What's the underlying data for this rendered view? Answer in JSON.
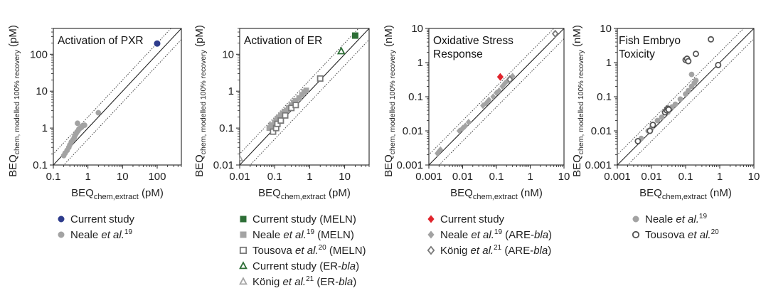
{
  "figure": {
    "y_label_main": "BEQ",
    "x_label_main": "BEQ"
  },
  "chart_data": [
    {
      "type": "scatter",
      "title": "Activation of PXR",
      "title_lines": [
        "Activation of PXR"
      ],
      "x_sub": "chem,extract",
      "x_unit": "(pM)",
      "y_sub": "chem, modelled 100% recovery",
      "y_unit": "(pM)",
      "xlim": [
        0.1,
        500
      ],
      "ylim": [
        0.1,
        500
      ],
      "scale": "log",
      "xticks": [
        0.1,
        1,
        10,
        100
      ],
      "xtick_labels": [
        "0.1",
        "1",
        "10",
        "100"
      ],
      "yticks": [
        0.1,
        1,
        10,
        100
      ],
      "ytick_labels": [
        "0.1",
        "1",
        "10",
        "100"
      ],
      "identity_line": true,
      "dotted_bounds_factor": 2,
      "series": [
        {
          "name": "Current study",
          "label_parts": {
            "pre": "Current study",
            "italic": "",
            "sup": "",
            "post": ""
          },
          "marker": "circle",
          "color": "#2e3c8c",
          "filled": true,
          "points": [
            [
              100,
              195
            ]
          ]
        },
        {
          "name": "Neale et al.19",
          "label_parts": {
            "pre": "Neale ",
            "italic": "et al.",
            "sup": "19",
            "post": ""
          },
          "marker": "circle",
          "color": "#a3a3a3",
          "filled": true,
          "points": [
            [
              0.2,
              0.18
            ],
            [
              0.22,
              0.21
            ],
            [
              0.25,
              0.25
            ],
            [
              0.28,
              0.3
            ],
            [
              0.3,
              0.35
            ],
            [
              0.33,
              0.42
            ],
            [
              0.37,
              0.48
            ],
            [
              0.4,
              0.55
            ],
            [
              0.42,
              0.62
            ],
            [
              0.45,
              0.7
            ],
            [
              0.48,
              0.78
            ],
            [
              0.5,
              1.35
            ],
            [
              0.52,
              0.85
            ],
            [
              0.55,
              0.95
            ],
            [
              0.6,
              1.0
            ],
            [
              0.65,
              1.05
            ],
            [
              0.7,
              1.15
            ],
            [
              0.8,
              1.2
            ],
            [
              2.0,
              2.6
            ]
          ]
        }
      ]
    },
    {
      "type": "scatter",
      "title": "Activation of ER",
      "title_lines": [
        "Activation of ER"
      ],
      "x_sub": "chem,extract",
      "x_unit": "(pM)",
      "y_sub": "chem, modelled 100% recovery",
      "y_unit": "(pM)",
      "xlim": [
        0.01,
        50
      ],
      "ylim": [
        0.01,
        50
      ],
      "scale": "log",
      "xticks": [
        0.01,
        0.1,
        1,
        10
      ],
      "xtick_labels": [
        "0.01",
        "0.1",
        "1",
        "10"
      ],
      "yticks": [
        0.01,
        0.1,
        1,
        10
      ],
      "ytick_labels": [
        "0.01",
        "0.1",
        "1",
        "10"
      ],
      "identity_line": true,
      "dotted_bounds_factor": 2,
      "series": [
        {
          "name": "Current study (MELN)",
          "label_parts": {
            "pre": "Current study (MELN)",
            "italic": "",
            "sup": "",
            "post": ""
          },
          "marker": "square",
          "color": "#2d6e36",
          "filled": true,
          "points": [
            [
              20,
              32
            ]
          ]
        },
        {
          "name": "Neale et al.19 (MELN)",
          "label_parts": {
            "pre": "Neale ",
            "italic": "et al.",
            "sup": "19",
            "post": " (MELN)"
          },
          "marker": "square",
          "color": "#a3a3a3",
          "filled": true,
          "points": [
            [
              0.07,
              0.1
            ],
            [
              0.08,
              0.12
            ],
            [
              0.09,
              0.11
            ],
            [
              0.1,
              0.14
            ],
            [
              0.11,
              0.16
            ],
            [
              0.12,
              0.18
            ],
            [
              0.13,
              0.19
            ],
            [
              0.15,
              0.22
            ],
            [
              0.17,
              0.25
            ],
            [
              0.19,
              0.28
            ],
            [
              0.22,
              0.3
            ],
            [
              0.25,
              0.35
            ],
            [
              0.3,
              0.42
            ],
            [
              0.35,
              0.5
            ],
            [
              0.4,
              0.55
            ],
            [
              0.5,
              0.65
            ],
            [
              0.6,
              0.8
            ],
            [
              0.7,
              0.95
            ],
            [
              0.8,
              1.05
            ]
          ]
        },
        {
          "name": "Tousova et al.20 (MELN)",
          "label_parts": {
            "pre": "Tousova ",
            "italic": "et al.",
            "sup": "20",
            "post": " (MELN)"
          },
          "marker": "square",
          "color": "#7a7a7a",
          "filled": false,
          "points": [
            [
              0.09,
              0.08
            ],
            [
              0.11,
              0.1
            ],
            [
              0.12,
              0.13
            ],
            [
              0.15,
              0.16
            ],
            [
              0.2,
              0.22
            ],
            [
              0.3,
              0.35
            ],
            [
              0.4,
              0.42
            ],
            [
              2.0,
              2.2
            ]
          ]
        },
        {
          "name": "Current study (ER-bla)",
          "label_parts": {
            "pre": "Current study (ER-",
            "italic": "bla",
            "sup": "",
            "post": ")"
          },
          "marker": "triangle",
          "color": "#2d6e36",
          "filled": false,
          "points": [
            [
              8,
              12
            ]
          ]
        },
        {
          "name": "König et al.21 (ER-bla)",
          "label_parts": {
            "pre": "König ",
            "italic": "et al.",
            "sup": "21",
            "post": " (ER-bla)"
          },
          "marker": "triangle",
          "color": "#a3a3a3",
          "filled": false,
          "points": [
            [
              0.01,
              0.015
            ]
          ]
        }
      ]
    },
    {
      "type": "scatter",
      "title": "Oxidative Stress Response",
      "title_lines": [
        "Oxidative Stress",
        "Response"
      ],
      "x_sub": "chem,extract",
      "x_unit": "(nM)",
      "y_sub": "chem, modelled 100% recovery",
      "y_unit": "(nM)",
      "xlim": [
        0.001,
        10
      ],
      "ylim": [
        0.001,
        10
      ],
      "scale": "log",
      "xticks": [
        0.001,
        0.01,
        0.1,
        1,
        10
      ],
      "xtick_labels": [
        "0.001",
        "0.01",
        "0.1",
        "1",
        "10"
      ],
      "yticks": [
        0.001,
        0.01,
        0.1,
        1,
        10
      ],
      "ytick_labels": [
        "0.001",
        "0.01",
        "0.1",
        "1",
        "10"
      ],
      "identity_line": true,
      "dotted_bounds_factor": 2,
      "series": [
        {
          "name": "Current study",
          "label_parts": {
            "pre": "Current study",
            "italic": "",
            "sup": "",
            "post": ""
          },
          "marker": "diamond",
          "color": "#e0242c",
          "filled": true,
          "points": [
            [
              0.13,
              0.38
            ]
          ]
        },
        {
          "name": "Neale et al.19 (ARE-bla)",
          "label_parts": {
            "pre": "Neale ",
            "italic": "et al.",
            "sup": "19",
            "post": " (ARE-bla)"
          },
          "marker": "diamond",
          "color": "#a3a3a3",
          "filled": true,
          "points": [
            [
              0.0018,
              0.0022
            ],
            [
              0.002,
              0.0025
            ],
            [
              0.0022,
              0.0028
            ],
            [
              0.008,
              0.01
            ],
            [
              0.01,
              0.012
            ],
            [
              0.012,
              0.014
            ],
            [
              0.015,
              0.018
            ],
            [
              0.04,
              0.055
            ],
            [
              0.05,
              0.065
            ],
            [
              0.06,
              0.08
            ],
            [
              0.08,
              0.1
            ],
            [
              0.1,
              0.13
            ],
            [
              0.12,
              0.15
            ],
            [
              0.15,
              0.2
            ],
            [
              0.18,
              0.25
            ],
            [
              0.22,
              0.3
            ],
            [
              0.25,
              0.35
            ],
            [
              0.3,
              0.4
            ]
          ]
        },
        {
          "name": "König et al.21 (ARE-bla)",
          "label_parts": {
            "pre": "König ",
            "italic": "et al.",
            "sup": "21",
            "post": " (ARE-bla)"
          },
          "marker": "diamond",
          "color": "#7a7a7a",
          "filled": false,
          "points": [
            [
              0.25,
              0.32
            ],
            [
              5.5,
              7.0
            ]
          ]
        }
      ]
    },
    {
      "type": "scatter",
      "title": "Fish Embryo Toxicity",
      "title_lines": [
        "Fish Embryo",
        "Toxicity"
      ],
      "x_sub": "chem,extract",
      "x_unit": "(nM)",
      "y_sub": "chem, modelled 100% recovery",
      "y_unit": "(nM)",
      "xlim": [
        0.001,
        10
      ],
      "ylim": [
        0.001,
        10
      ],
      "scale": "log",
      "xticks": [
        0.001,
        0.01,
        0.1,
        1,
        10
      ],
      "xtick_labels": [
        "0.001",
        "0.01",
        "0.1",
        "1",
        "10"
      ],
      "yticks": [
        0.001,
        0.01,
        0.1,
        1,
        10
      ],
      "ytick_labels": [
        "0.001",
        "0.01",
        "0.1",
        "1",
        "10"
      ],
      "identity_line": true,
      "dotted_bounds_factor": 2,
      "series": [
        {
          "name": "Neale et al.19",
          "label_parts": {
            "pre": "Neale ",
            "italic": "et al.",
            "sup": "19",
            "post": ""
          },
          "marker": "circle",
          "color": "#a3a3a3",
          "filled": true,
          "points": [
            [
              0.005,
              0.006
            ],
            [
              0.008,
              0.01
            ],
            [
              0.01,
              0.012
            ],
            [
              0.015,
              0.02
            ],
            [
              0.02,
              0.025
            ],
            [
              0.03,
              0.035
            ],
            [
              0.04,
              0.05
            ],
            [
              0.05,
              0.06
            ],
            [
              0.07,
              0.085
            ],
            [
              0.1,
              0.12
            ],
            [
              0.12,
              0.15
            ],
            [
              0.15,
              0.2
            ],
            [
              0.18,
              0.25
            ],
            [
              0.2,
              0.3
            ],
            [
              0.15,
              0.45
            ]
          ]
        },
        {
          "name": "Tousova et al.20",
          "label_parts": {
            "pre": "Tousova ",
            "italic": "et al.",
            "sup": "20",
            "post": ""
          },
          "marker": "circle",
          "color": "#555555",
          "filled": false,
          "points": [
            [
              0.004,
              0.005
            ],
            [
              0.009,
              0.01
            ],
            [
              0.011,
              0.015
            ],
            [
              0.025,
              0.035
            ],
            [
              0.028,
              0.04
            ],
            [
              0.03,
              0.045
            ],
            [
              0.032,
              0.042
            ],
            [
              0.1,
              1.2
            ],
            [
              0.11,
              1.3
            ],
            [
              0.12,
              1.1
            ],
            [
              0.2,
              1.8
            ],
            [
              0.55,
              4.8
            ],
            [
              0.9,
              0.85
            ]
          ]
        }
      ]
    }
  ]
}
